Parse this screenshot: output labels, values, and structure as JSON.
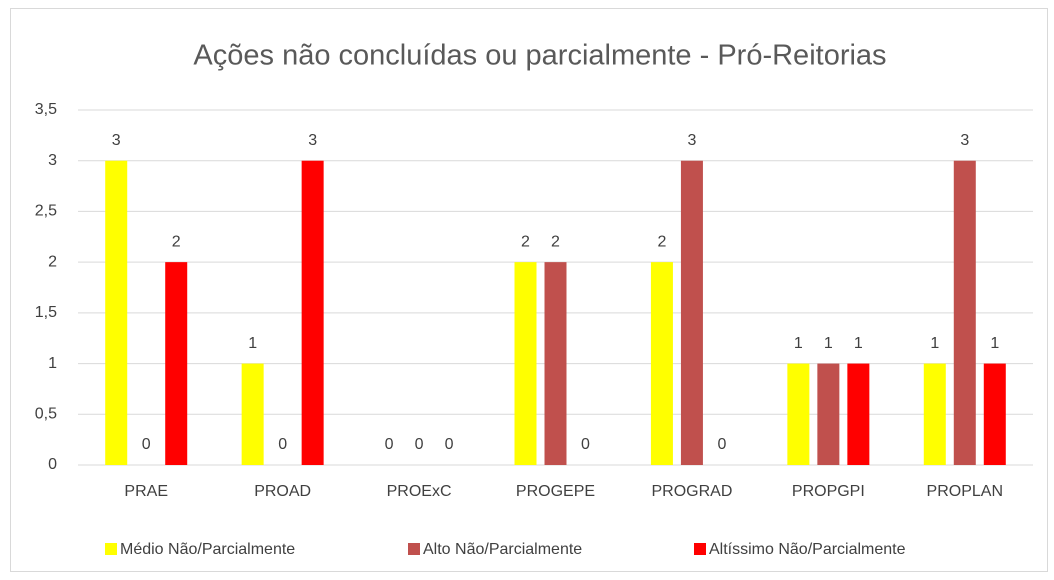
{
  "chart_data": {
    "type": "bar",
    "title": "Ações não concluídas ou parcialmente - Pró-Reitorias",
    "categories": [
      "PRAE",
      "PROAD",
      "PROExC",
      "PROGEPE",
      "PROGRAD",
      "PROPGPI",
      "PROPLAN"
    ],
    "series": [
      {
        "name": "Médio Não/Parcialmente",
        "color": "#ffff00",
        "values": [
          3,
          1,
          0,
          2,
          2,
          1,
          1
        ]
      },
      {
        "name": "Alto Não/Parcialmente",
        "color": "#c0504d",
        "values": [
          0,
          0,
          0,
          2,
          3,
          1,
          3
        ]
      },
      {
        "name": "Altíssimo Não/Parcialmente",
        "color": "#ff0000",
        "values": [
          2,
          3,
          0,
          0,
          0,
          1,
          1
        ]
      }
    ],
    "ylim": [
      0,
      3.5
    ],
    "yticks": [
      0,
      {
        "value": 0.5,
        "label": "0,5"
      },
      1,
      {
        "value": 1.5,
        "label": "1,5"
      },
      2,
      {
        "value": 2.5,
        "label": "2,5"
      },
      3,
      {
        "value": 3.5,
        "label": "3,5"
      }
    ],
    "grid": true,
    "legend": "bottom"
  }
}
